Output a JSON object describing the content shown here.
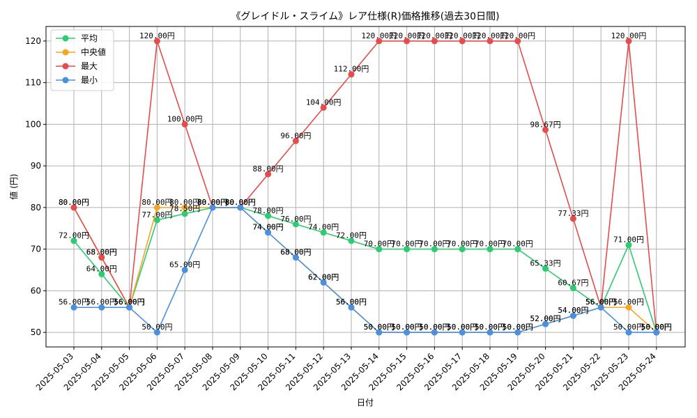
{
  "chart_data": {
    "type": "line",
    "title": "《グレイドル・スライム》レア仕様(R)価格推移(過去30日間)",
    "xlabel": "日付",
    "ylabel": "値 (円)",
    "ylim": [
      46.5,
      123.5
    ],
    "yticks": [
      50,
      60,
      70,
      80,
      90,
      100,
      110,
      120
    ],
    "grid": true,
    "legend_position": "top-left",
    "label_suffix": "円",
    "categories": [
      "2025-05-03",
      "2025-05-04",
      "2025-05-05",
      "2025-05-06",
      "2025-05-07",
      "2025-05-08",
      "2025-05-09",
      "2025-05-10",
      "2025-05-11",
      "2025-05-12",
      "2025-05-13",
      "2025-05-14",
      "2025-05-15",
      "2025-05-16",
      "2025-05-17",
      "2025-05-18",
      "2025-05-19",
      "2025-05-20",
      "2025-05-21",
      "2025-05-22",
      "2025-05-23",
      "2025-05-24"
    ],
    "series": [
      {
        "name": "平均",
        "color": "#2ecc71",
        "values": [
          72,
          64,
          56,
          77,
          78.5,
          80,
          80,
          78,
          76,
          74,
          72,
          70,
          70,
          70,
          70,
          70,
          70,
          65.33,
          60.67,
          56,
          71,
          50
        ]
      },
      {
        "name": "中央値",
        "color": "#f5a623",
        "values": [
          80,
          68,
          56,
          80,
          80,
          80,
          80,
          74,
          68,
          62,
          56,
          50,
          50,
          50,
          50,
          50,
          50,
          52,
          54,
          56,
          56,
          50
        ]
      },
      {
        "name": "最大",
        "color": "#e84b4b",
        "values": [
          80,
          68,
          56,
          120,
          100,
          80,
          80,
          88,
          96,
          104,
          112,
          120,
          120,
          120,
          120,
          120,
          120,
          98.67,
          77.33,
          56,
          120,
          50
        ]
      },
      {
        "name": "最小",
        "color": "#4a90e2",
        "values": [
          56,
          56,
          56,
          50,
          65,
          80,
          80,
          74,
          68,
          62,
          56,
          50,
          50,
          50,
          50,
          50,
          50,
          52,
          54,
          56,
          50,
          50
        ]
      }
    ]
  }
}
